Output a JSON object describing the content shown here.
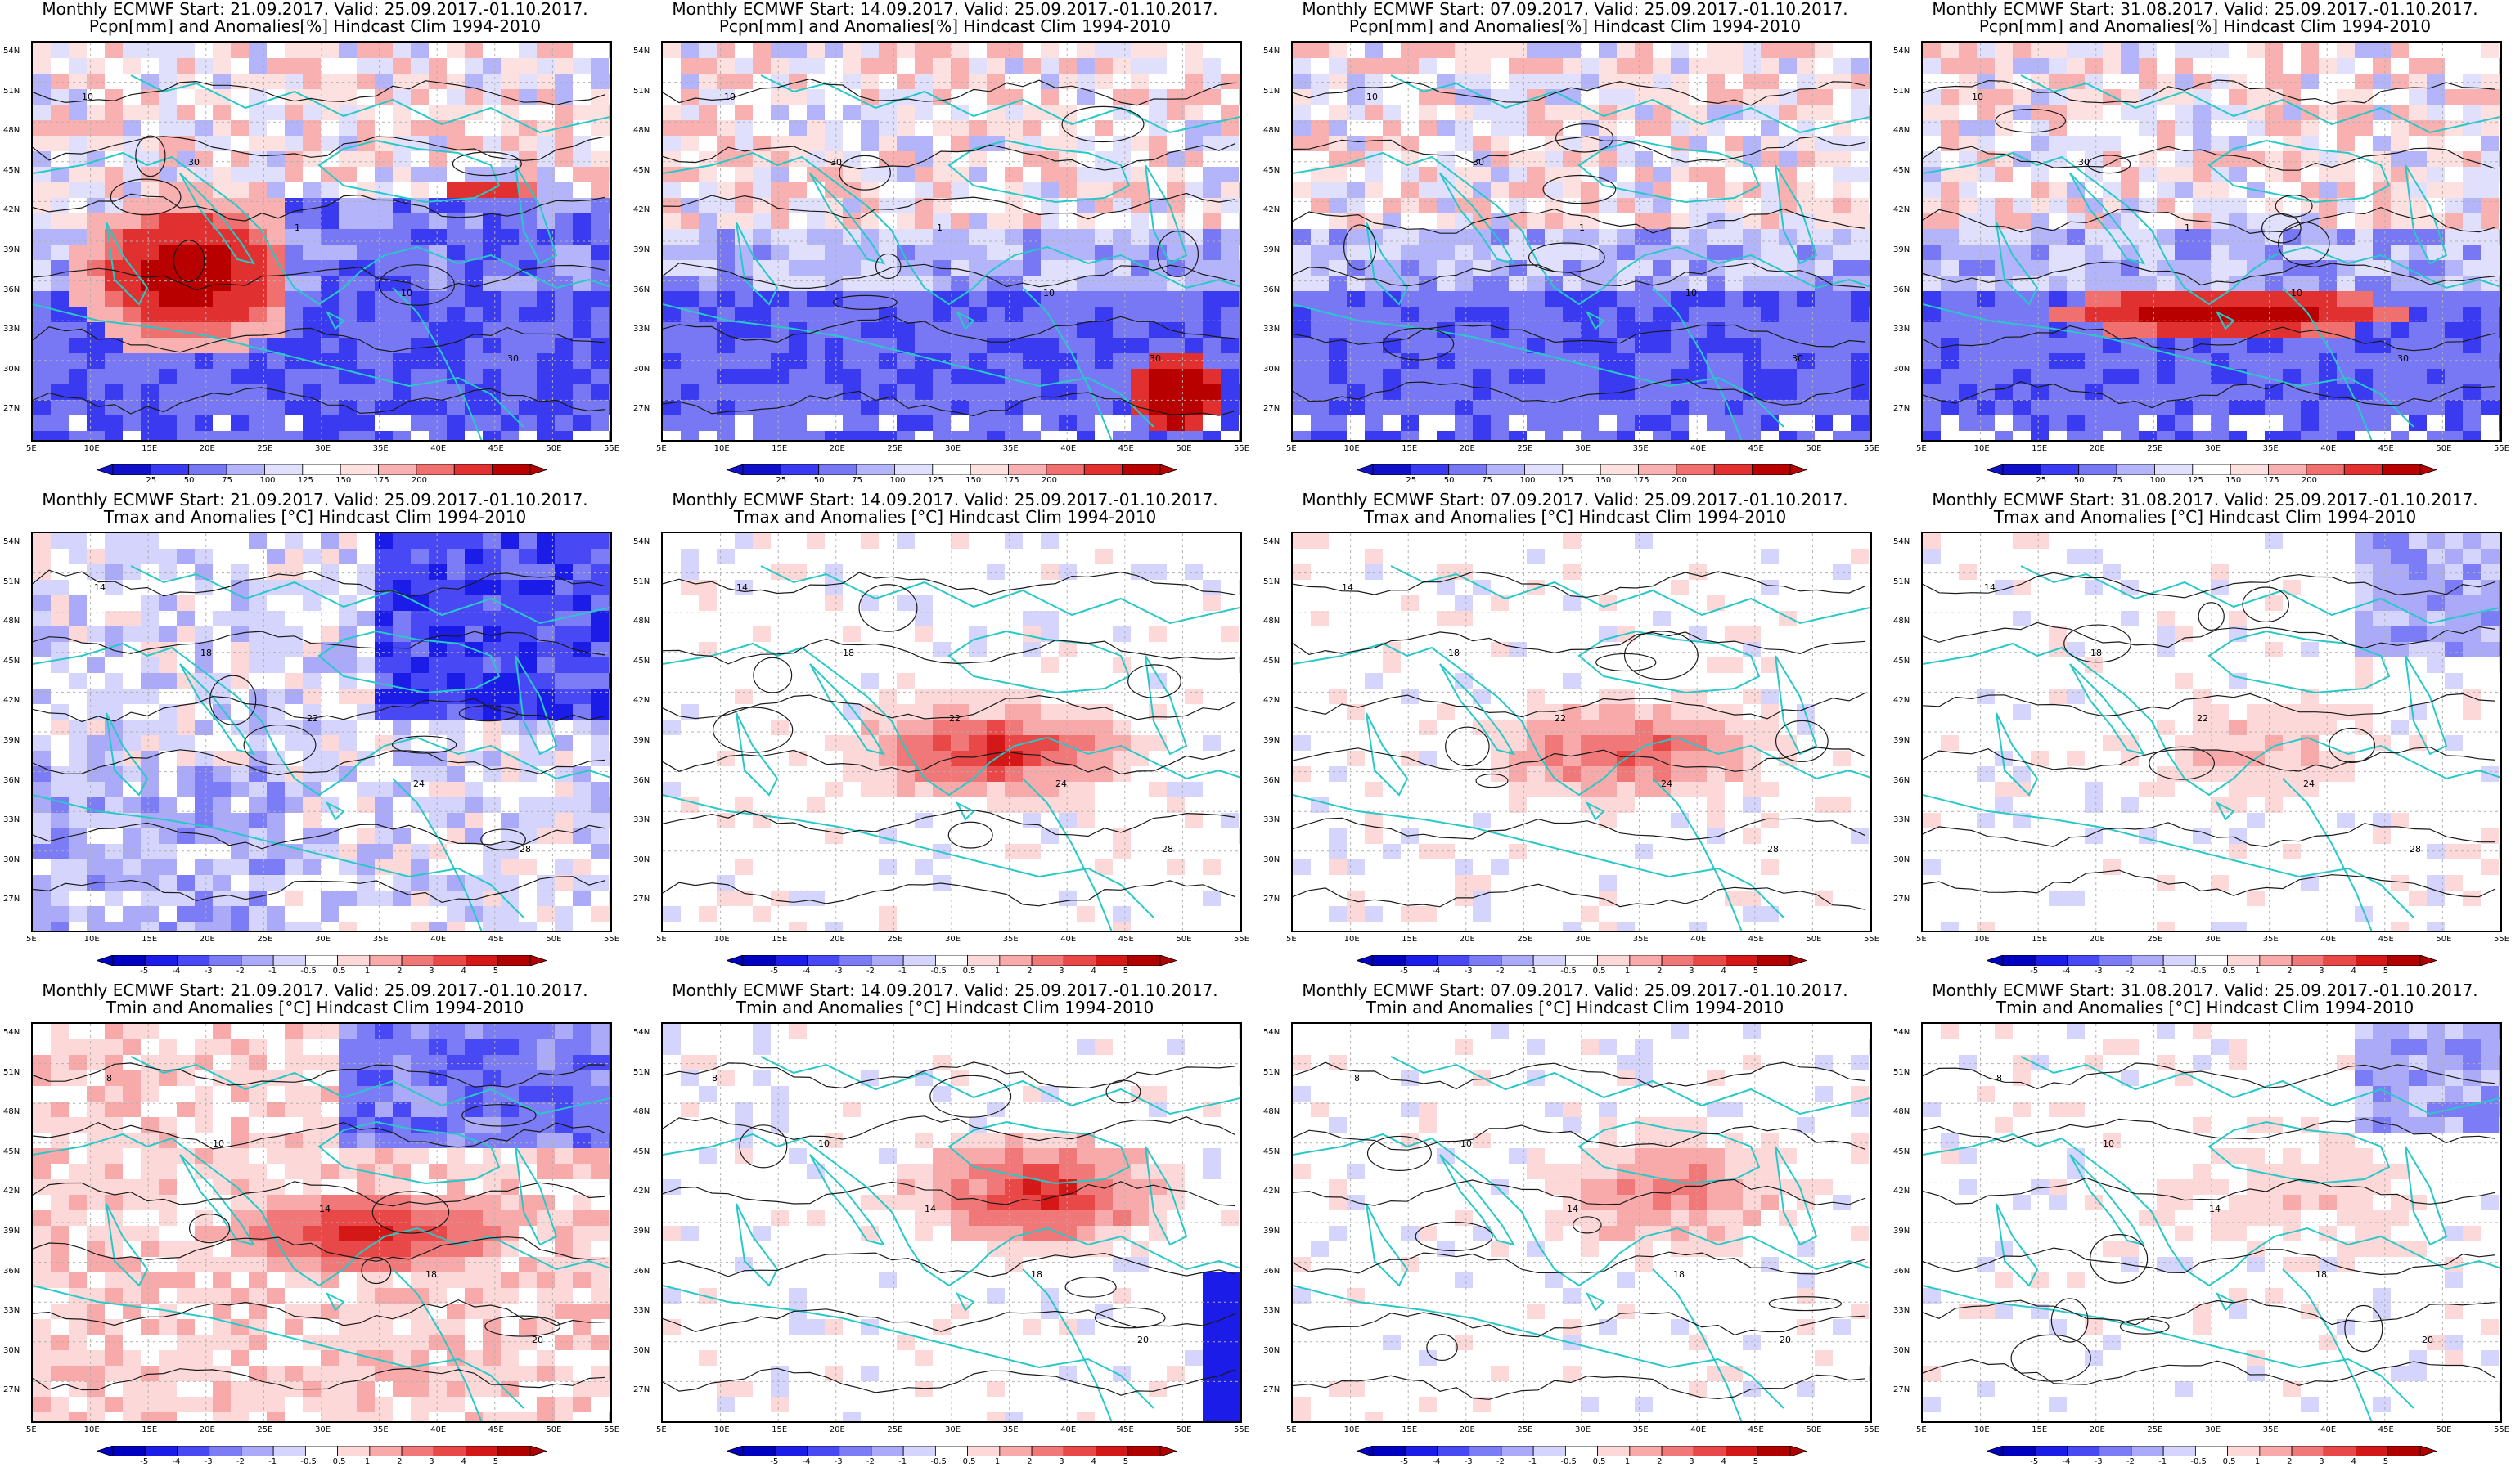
{
  "panels": [
    {
      "line1": "Monthly ECMWF Start: 21.09.2017. Valid: 25.09.2017.-01.10.2017.",
      "line2": "Pcpn[mm] and Anomalies[%] Hindcast Clim 1994-2010",
      "var": "pcpn",
      "contours": [
        "10",
        "30",
        "1",
        "10",
        "30"
      ]
    },
    {
      "line1": "Monthly ECMWF Start: 14.09.2017. Valid: 25.09.2017.-01.10.2017.",
      "line2": "Pcpn[mm] and Anomalies[%] Hindcast Clim 1994-2010",
      "var": "pcpn",
      "contours": [
        "10",
        "30",
        "1",
        "10",
        "30"
      ]
    },
    {
      "line1": "Monthly ECMWF Start: 07.09.2017. Valid: 25.09.2017.-01.10.2017.",
      "line2": "Pcpn[mm] and Anomalies[%] Hindcast Clim 1994-2010",
      "var": "pcpn",
      "contours": [
        "10",
        "30",
        "1",
        "10",
        "30"
      ]
    },
    {
      "line1": "Monthly ECMWF Start: 31.08.2017. Valid: 25.09.2017.-01.10.2017.",
      "line2": "Pcpn[mm] and Anomalies[%] Hindcast Clim 1994-2010",
      "var": "pcpn",
      "contours": [
        "10",
        "30",
        "1",
        "10",
        "30"
      ]
    },
    {
      "line1": "Monthly ECMWF Start: 21.09.2017. Valid: 25.09.2017.-01.10.2017.",
      "line2": "Tmax and Anomalies [°C] Hindcast Clim 1994-2010",
      "var": "tmax",
      "contours": [
        "14",
        "18",
        "22",
        "24",
        "28"
      ]
    },
    {
      "line1": "Monthly ECMWF Start: 14.09.2017. Valid: 25.09.2017.-01.10.2017.",
      "line2": "Tmax and Anomalies [°C] Hindcast Clim 1994-2010",
      "var": "tmax",
      "contours": [
        "14",
        "18",
        "22",
        "24",
        "28"
      ]
    },
    {
      "line1": "Monthly ECMWF Start: 07.09.2017. Valid: 25.09.2017.-01.10.2017.",
      "line2": "Tmax and Anomalies [°C] Hindcast Clim 1994-2010",
      "var": "tmax",
      "contours": [
        "14",
        "18",
        "22",
        "24",
        "28"
      ]
    },
    {
      "line1": "Monthly ECMWF Start: 31.08.2017. Valid: 25.09.2017.-01.10.2017.",
      "line2": "Tmax and Anomalies [°C] Hindcast Clim 1994-2010",
      "var": "tmax",
      "contours": [
        "14",
        "18",
        "22",
        "24",
        "28"
      ]
    },
    {
      "line1": "Monthly ECMWF Start: 21.09.2017. Valid: 25.09.2017.-01.10.2017.",
      "line2": "Tmin and Anomalies [°C] Hindcast Clim 1994-2010",
      "var": "tmin",
      "contours": [
        "8",
        "10",
        "14",
        "18",
        "20"
      ]
    },
    {
      "line1": "Monthly ECMWF Start: 14.09.2017. Valid: 25.09.2017.-01.10.2017.",
      "line2": "Tmin and Anomalies [°C] Hindcast Clim 1994-2010",
      "var": "tmin",
      "contours": [
        "8",
        "10",
        "14",
        "18",
        "20"
      ]
    },
    {
      "line1": "Monthly ECMWF Start: 07.09.2017. Valid: 25.09.2017.-01.10.2017.",
      "line2": "Tmin and Anomalies [°C] Hindcast Clim 1994-2010",
      "var": "tmin",
      "contours": [
        "8",
        "10",
        "14",
        "18",
        "20"
      ]
    },
    {
      "line1": "Monthly ECMWF Start: 31.08.2017. Valid: 25.09.2017.-01.10.2017.",
      "line2": "Tmin and Anomalies [°C] Hindcast Clim 1994-2010",
      "var": "tmin",
      "contours": [
        "8",
        "10",
        "14",
        "18",
        "20"
      ]
    }
  ],
  "lat_labels": [
    "54N",
    "51N",
    "48N",
    "45N",
    "42N",
    "39N",
    "36N",
    "33N",
    "30N",
    "27N"
  ],
  "lon_labels": [
    "5E",
    "10E",
    "15E",
    "20E",
    "25E",
    "30E",
    "35E",
    "40E",
    "45E",
    "50E",
    "55E"
  ],
  "colorbars": {
    "pcpn": {
      "labels": [
        "25",
        "50",
        "75",
        "100",
        "125",
        "150",
        "175",
        "200"
      ],
      "colors": [
        "#1010c8",
        "#3a3af0",
        "#7878f5",
        "#b4b4fa",
        "#e0e0fc",
        "#ffffff",
        "#fde0e0",
        "#f8b0b0",
        "#f07070",
        "#e03030",
        "#b80000"
      ]
    },
    "temp": {
      "labels": [
        "-5",
        "-4",
        "-3",
        "-2",
        "-1",
        "-0.5",
        "0.5",
        "1",
        "2",
        "3",
        "4",
        "5"
      ],
      "colors": [
        "#0000c0",
        "#1c1ce8",
        "#4848f4",
        "#7c7cf6",
        "#aaaaf8",
        "#d4d4fc",
        "#ffffff",
        "#fcd8d8",
        "#f8aaaa",
        "#f07878",
        "#e84848",
        "#d41818",
        "#b00000"
      ]
    }
  },
  "map_colors": {
    "coast": "#29c8c8",
    "contour": "#1a1a1a",
    "grid": "#b0b0b0"
  }
}
